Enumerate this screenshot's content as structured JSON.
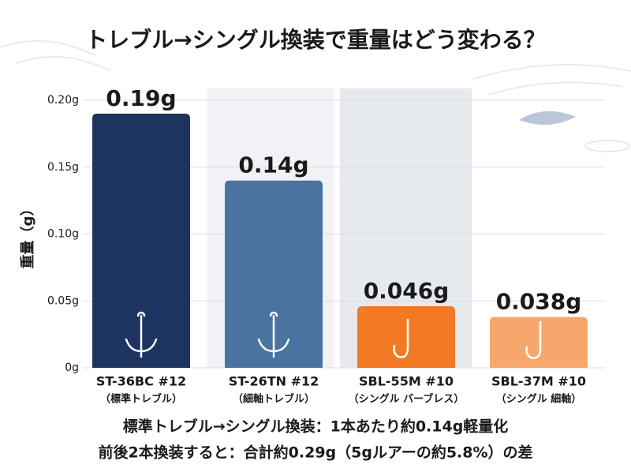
{
  "chart_data": {
    "type": "bar",
    "title": "トレブル→シングル換装で重量はどう変わる？",
    "y_label": "重量（g）",
    "categories": [
      "ST-36BC #12",
      "ST-26TN #12",
      "SBL-55M #10",
      "SBL-37M #10"
    ],
    "subcategories": [
      "（標準トレブル）",
      "（細軸トレブル）",
      "（シングル バーブレス）",
      "（シングル 細軸）"
    ],
    "values": [
      0.19,
      0.14,
      0.046,
      0.038
    ],
    "value_labels": [
      "0.19g",
      "0.14g",
      "0.046g",
      "0.038g"
    ],
    "colors": [
      "#1d3461",
      "#4b739f",
      "#f27a25",
      "#f6a86c"
    ],
    "ylim": [
      0,
      0.2
    ],
    "yticks": [
      {
        "value": 0,
        "label": "0g"
      },
      {
        "value": 0.05,
        "label": "0.05g"
      },
      {
        "value": 0.1,
        "label": "0.10g"
      },
      {
        "value": 0.15,
        "label": "0.15g"
      },
      {
        "value": 0.2,
        "label": "0.20g"
      }
    ],
    "grid": true,
    "notes": [
      "標準トレブル→シングル換装：1本あたり約0.14g軽量化",
      "前後2本換装すると：合計約0.29g（5gルアーの約5.8%）の差"
    ]
  }
}
